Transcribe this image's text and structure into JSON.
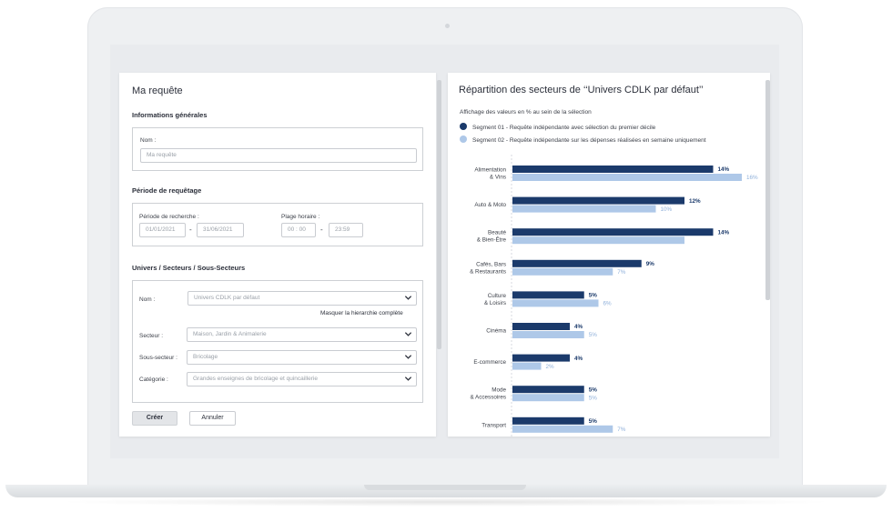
{
  "form": {
    "title": "Ma requête",
    "general": {
      "heading": "Informations générales",
      "name_label": "Nom :",
      "name_placeholder": "Ma requête"
    },
    "period": {
      "heading": "Période de requêtage",
      "search_label": "Période de recherche :",
      "start_date": "01/01/2021",
      "end_date": "31/06/2021",
      "range_separator": "-",
      "hours_label": "Plage horaire :",
      "start_time": "00 : 00",
      "end_time": "23:59"
    },
    "sectors": {
      "heading": "Univers / Secteurs / Sous-Secteurs",
      "name_label": "Nom :",
      "name_value": "Univers CDLK par défaut",
      "hide_link": "Masquer la hierarchie complète",
      "sector_label": "Secteur :",
      "sector_value": "Maison, Jardin & Animalerie",
      "subsector_label": "Sous-secteur :",
      "subsector_value": "Bricolage",
      "category_label": "Catégorie :",
      "category_value": "Grandes enseignes de bricolage et quincaillerie"
    },
    "create_label": "Créer",
    "cancel_label": "Annuler"
  },
  "colors": {
    "segment1": "#1b3a6b",
    "segment2": "#aec8e8",
    "segment2_text": "#8fb0da"
  },
  "chart_data": {
    "type": "bar",
    "orientation": "horizontal",
    "title": "Répartition des secteurs de ‘‘Univers CDLK par défaut’’",
    "subtitle": "Affichage des valeurs en % au sein de la sélection",
    "categories": [
      "Alimentation\n& Vins",
      "Auto & Moto",
      "Beauté\n& Bien-Être",
      "Cafés, Bars\n& Restaurants",
      "Culture\n& Loisirs",
      "Cinéma",
      "E-commerce",
      "Mode\n& Accessoires",
      "Transport"
    ],
    "series": [
      {
        "name": "Segment 01 - Requête indépendante avec sélection du premier décile",
        "values": [
          14,
          12,
          14,
          9,
          5,
          4,
          4,
          5,
          5
        ],
        "labels": [
          "14%",
          "12%",
          "14%",
          "9%",
          "5%",
          "4%",
          "4%",
          "5%",
          "5%"
        ]
      },
      {
        "name": "Segment 02 - Requête indépendante sur les dépenses réalisées en semaine uniquement",
        "values": [
          16,
          10,
          12,
          7,
          6,
          5,
          2,
          5,
          7
        ],
        "labels": [
          "16%",
          "10%",
          "",
          "7%",
          "6%",
          "5%",
          "2%",
          "5%",
          "7%"
        ]
      }
    ],
    "xlim": [
      0,
      16
    ],
    "legend_position": "top-left",
    "grid": false
  }
}
